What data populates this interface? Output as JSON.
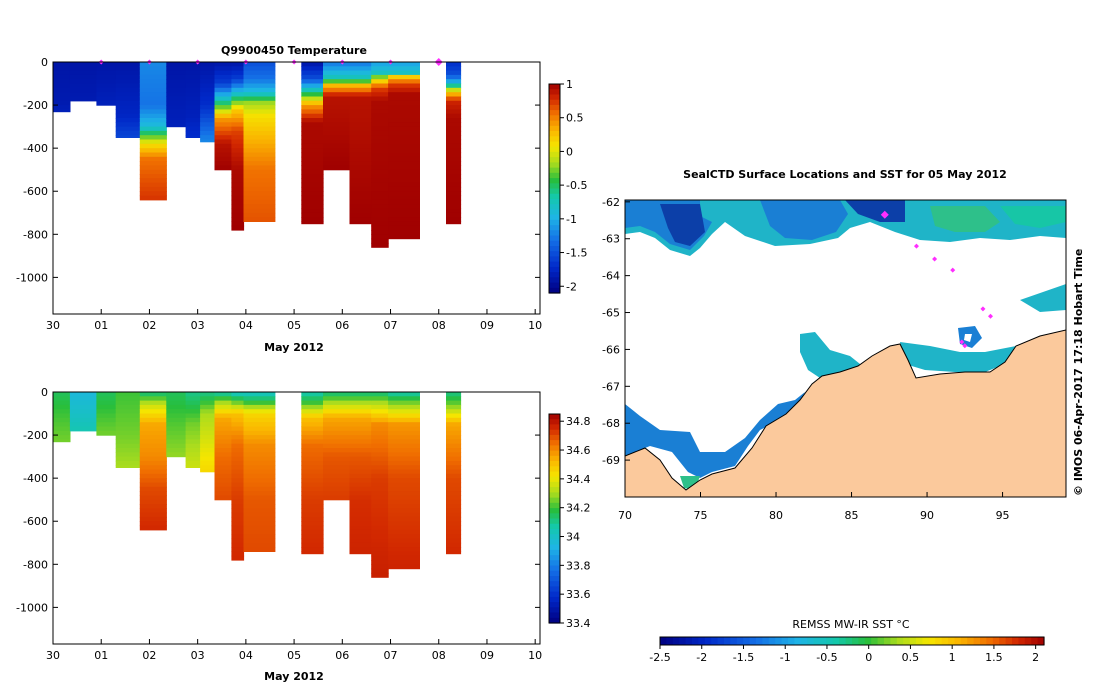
{
  "figure": {
    "top_title": "Q9900450  Temperature",
    "map_title": "SealCTD Surface Locations and SST for 05 May 2012",
    "side_caption": "© IMOS 06-Apr-2017 17:18 Hobart Time",
    "colors": {
      "land": "#fbc99c",
      "marker": "#ff2eff",
      "coast": "#000000"
    }
  },
  "chart_data": [
    {
      "id": "temperature-section",
      "type": "heatmap",
      "title": "Q9900450  Temperature",
      "xlabel": "May 2012",
      "ylabel": "",
      "x_ticks": [
        "30",
        "01",
        "02",
        "03",
        "04",
        "05",
        "06",
        "07",
        "08",
        "09",
        "10"
      ],
      "x_range": [
        0,
        10.1
      ],
      "y_ticks": [
        0,
        -200,
        -400,
        -600,
        -800,
        -1000
      ],
      "ylim": [
        -1170,
        0
      ],
      "colorbar": {
        "min": -2.1,
        "max": 1.0,
        "ticks": [
          "1",
          "0.5",
          "0",
          "-0.5",
          "-1",
          "-1.5",
          "-2"
        ]
      },
      "profiles": [
        {
          "start": 0.0,
          "end": 0.35,
          "max_depth": 230,
          "profile": [
            [
              0,
              -1.9
            ],
            [
              200,
              -1.85
            ],
            [
              230,
              -1.8
            ]
          ]
        },
        {
          "start": 0.35,
          "end": 0.9,
          "max_depth": 180,
          "profile": [
            [
              0,
              -1.9
            ],
            [
              180,
              -1.85
            ]
          ]
        },
        {
          "start": 0.9,
          "end": 1.3,
          "max_depth": 200,
          "profile": [
            [
              0,
              -1.9
            ],
            [
              200,
              -1.8
            ]
          ]
        },
        {
          "start": 1.3,
          "end": 1.8,
          "max_depth": 350,
          "profile": [
            [
              0,
              -1.9
            ],
            [
              250,
              -1.75
            ],
            [
              350,
              -1.55
            ]
          ]
        },
        {
          "start": 1.8,
          "end": 2.35,
          "max_depth": 640,
          "profile": [
            [
              0,
              -1.2
            ],
            [
              200,
              -1.3
            ],
            [
              300,
              -0.9
            ],
            [
              380,
              0.1
            ],
            [
              450,
              0.55
            ],
            [
              640,
              0.75
            ]
          ]
        },
        {
          "start": 2.35,
          "end": 2.75,
          "max_depth": 300,
          "profile": [
            [
              0,
              -1.9
            ],
            [
              300,
              -1.8
            ]
          ]
        },
        {
          "start": 2.75,
          "end": 3.05,
          "max_depth": 350,
          "profile": [
            [
              0,
              -1.9
            ],
            [
              250,
              -1.8
            ],
            [
              350,
              -1.7
            ]
          ]
        },
        {
          "start": 3.05,
          "end": 3.35,
          "max_depth": 370,
          "profile": [
            [
              0,
              -1.9
            ],
            [
              200,
              -1.7
            ],
            [
              370,
              -1.2
            ]
          ]
        },
        {
          "start": 3.35,
          "end": 3.7,
          "max_depth": 500,
          "profile": [
            [
              0,
              -1.9
            ],
            [
              100,
              -1.6
            ],
            [
              180,
              -0.7
            ],
            [
              260,
              0.4
            ],
            [
              380,
              0.9
            ],
            [
              500,
              1.0
            ]
          ]
        },
        {
          "start": 3.7,
          "end": 3.95,
          "max_depth": 780,
          "profile": [
            [
              0,
              -1.9
            ],
            [
              80,
              -1.6
            ],
            [
              150,
              -0.8
            ],
            [
              220,
              0.2
            ],
            [
              320,
              0.7
            ],
            [
              500,
              0.95
            ],
            [
              780,
              1.0
            ]
          ]
        },
        {
          "start": 3.95,
          "end": 4.6,
          "max_depth": 740,
          "profile": [
            [
              0,
              -1.5
            ],
            [
              80,
              -1.3
            ],
            [
              140,
              -0.9
            ],
            [
              190,
              -0.2
            ],
            [
              250,
              0.1
            ],
            [
              350,
              0.3
            ],
            [
              500,
              0.55
            ],
            [
              740,
              0.65
            ]
          ]
        },
        {
          "start": 5.15,
          "end": 5.6,
          "max_depth": 750,
          "profile": [
            [
              0,
              -1.9
            ],
            [
              80,
              -1.5
            ],
            [
              140,
              -0.6
            ],
            [
              200,
              0.4
            ],
            [
              280,
              0.95
            ],
            [
              750,
              1.0
            ]
          ]
        },
        {
          "start": 5.6,
          "end": 6.15,
          "max_depth": 500,
          "profile": [
            [
              0,
              -1.3
            ],
            [
              40,
              -1.0
            ],
            [
              80,
              -0.7
            ],
            [
              110,
              0.3
            ],
            [
              160,
              0.9
            ],
            [
              500,
              1.0
            ]
          ]
        },
        {
          "start": 6.15,
          "end": 6.6,
          "max_depth": 750,
          "profile": [
            [
              0,
              -1.3
            ],
            [
              40,
              -1.0
            ],
            [
              80,
              -0.7
            ],
            [
              110,
              0.3
            ],
            [
              160,
              0.9
            ],
            [
              750,
              1.0
            ]
          ]
        },
        {
          "start": 6.6,
          "end": 6.95,
          "max_depth": 860,
          "profile": [
            [
              0,
              -1.1
            ],
            [
              50,
              -0.8
            ],
            [
              80,
              0.0
            ],
            [
              120,
              0.7
            ],
            [
              180,
              0.95
            ],
            [
              860,
              1.0
            ]
          ]
        },
        {
          "start": 6.95,
          "end": 7.6,
          "max_depth": 820,
          "profile": [
            [
              0,
              -1.1
            ],
            [
              50,
              -0.8
            ],
            [
              70,
              0.2
            ],
            [
              100,
              0.7
            ],
            [
              150,
              0.95
            ],
            [
              820,
              1.0
            ]
          ]
        },
        {
          "start": 8.15,
          "end": 8.45,
          "max_depth": 750,
          "profile": [
            [
              0,
              -1.7
            ],
            [
              60,
              -1.5
            ],
            [
              100,
              -0.9
            ],
            [
              140,
              0.2
            ],
            [
              180,
              0.8
            ],
            [
              260,
              0.95
            ],
            [
              750,
              1.0
            ]
          ]
        }
      ],
      "markers": [
        1.0,
        2.0,
        3.0,
        4.0,
        5.0,
        6.0,
        7.0,
        8.0
      ]
    },
    {
      "id": "salinity-section",
      "type": "heatmap",
      "title": "",
      "xlabel": "May 2012",
      "ylabel": "",
      "x_ticks": [
        "30",
        "01",
        "02",
        "03",
        "04",
        "05",
        "06",
        "07",
        "08",
        "09",
        "10"
      ],
      "x_range": [
        0,
        10.1
      ],
      "y_ticks": [
        0,
        -200,
        -400,
        -600,
        -800,
        -1000
      ],
      "ylim": [
        -1170,
        0
      ],
      "colorbar": {
        "min": 33.4,
        "max": 34.85,
        "ticks": [
          "34.8",
          "34.6",
          "34.4",
          "34.2",
          "34",
          "33.8",
          "33.6",
          "33.4"
        ]
      },
      "profiles": [
        {
          "start": 0.0,
          "end": 0.35,
          "max_depth": 230,
          "profile": [
            [
              0,
              34.15
            ],
            [
              100,
              34.2
            ],
            [
              230,
              34.25
            ]
          ]
        },
        {
          "start": 0.35,
          "end": 0.9,
          "max_depth": 180,
          "profile": [
            [
              0,
              33.95
            ],
            [
              100,
              34.0
            ],
            [
              180,
              34.05
            ]
          ]
        },
        {
          "start": 0.9,
          "end": 1.3,
          "max_depth": 200,
          "profile": [
            [
              0,
              34.15
            ],
            [
              100,
              34.2
            ],
            [
              200,
              34.25
            ]
          ]
        },
        {
          "start": 1.3,
          "end": 1.8,
          "max_depth": 350,
          "profile": [
            [
              0,
              34.2
            ],
            [
              200,
              34.25
            ],
            [
              350,
              34.3
            ]
          ]
        },
        {
          "start": 1.8,
          "end": 2.35,
          "max_depth": 640,
          "profile": [
            [
              0,
              34.1
            ],
            [
              60,
              34.35
            ],
            [
              150,
              34.55
            ],
            [
              300,
              34.6
            ],
            [
              450,
              34.7
            ],
            [
              640,
              34.75
            ]
          ]
        },
        {
          "start": 2.35,
          "end": 2.75,
          "max_depth": 300,
          "profile": [
            [
              0,
              34.15
            ],
            [
              150,
              34.22
            ],
            [
              300,
              34.28
            ]
          ]
        },
        {
          "start": 2.75,
          "end": 3.05,
          "max_depth": 350,
          "profile": [
            [
              0,
              34.1
            ],
            [
              150,
              34.25
            ],
            [
              350,
              34.35
            ]
          ]
        },
        {
          "start": 3.05,
          "end": 3.35,
          "max_depth": 370,
          "profile": [
            [
              0,
              34.1
            ],
            [
              100,
              34.3
            ],
            [
              370,
              34.45
            ]
          ]
        },
        {
          "start": 3.35,
          "end": 3.7,
          "max_depth": 500,
          "profile": [
            [
              0,
              34.05
            ],
            [
              50,
              34.3
            ],
            [
              120,
              34.55
            ],
            [
              300,
              34.65
            ],
            [
              500,
              34.7
            ]
          ]
        },
        {
          "start": 3.7,
          "end": 3.95,
          "max_depth": 780,
          "profile": [
            [
              0,
              34.0
            ],
            [
              40,
              34.2
            ],
            [
              100,
              34.5
            ],
            [
              250,
              34.65
            ],
            [
              500,
              34.72
            ],
            [
              780,
              34.75
            ]
          ]
        },
        {
          "start": 3.95,
          "end": 4.6,
          "max_depth": 740,
          "profile": [
            [
              0,
              34.0
            ],
            [
              50,
              34.2
            ],
            [
              100,
              34.45
            ],
            [
              250,
              34.6
            ],
            [
              500,
              34.68
            ],
            [
              740,
              34.7
            ]
          ]
        },
        {
          "start": 5.15,
          "end": 5.6,
          "max_depth": 750,
          "profile": [
            [
              0,
              34.05
            ],
            [
              50,
              34.2
            ],
            [
              120,
              34.5
            ],
            [
              250,
              34.65
            ],
            [
              500,
              34.72
            ],
            [
              750,
              34.75
            ]
          ]
        },
        {
          "start": 5.6,
          "end": 6.15,
          "max_depth": 500,
          "profile": [
            [
              0,
              34.1
            ],
            [
              50,
              34.3
            ],
            [
              120,
              34.55
            ],
            [
              300,
              34.68
            ],
            [
              500,
              34.72
            ]
          ]
        },
        {
          "start": 6.15,
          "end": 6.6,
          "max_depth": 750,
          "profile": [
            [
              0,
              34.1
            ],
            [
              50,
              34.3
            ],
            [
              120,
              34.55
            ],
            [
              300,
              34.68
            ],
            [
              500,
              34.74
            ],
            [
              750,
              34.76
            ]
          ]
        },
        {
          "start": 6.6,
          "end": 6.95,
          "max_depth": 860,
          "profile": [
            [
              0,
              34.1
            ],
            [
              50,
              34.3
            ],
            [
              150,
              34.6
            ],
            [
              400,
              34.72
            ],
            [
              860,
              34.77
            ]
          ]
        },
        {
          "start": 6.95,
          "end": 7.6,
          "max_depth": 820,
          "profile": [
            [
              0,
              34.05
            ],
            [
              50,
              34.25
            ],
            [
              150,
              34.58
            ],
            [
              400,
              34.7
            ],
            [
              820,
              34.76
            ]
          ]
        },
        {
          "start": 8.15,
          "end": 8.45,
          "max_depth": 750,
          "profile": [
            [
              0,
              34.1
            ],
            [
              60,
              34.25
            ],
            [
              150,
              34.55
            ],
            [
              400,
              34.7
            ],
            [
              750,
              34.75
            ]
          ]
        }
      ]
    },
    {
      "id": "sst-map",
      "type": "heatmap",
      "title": "SealCTD Surface Locations and SST for 05 May 2012",
      "xlabel": "",
      "ylabel": "",
      "x_ticks": [
        70,
        75,
        80,
        85,
        90,
        95
      ],
      "y_ticks": [
        -62,
        -63,
        -64,
        -65,
        -66,
        -67,
        -68,
        -69
      ],
      "xlim": [
        70,
        99.2
      ],
      "ylim": [
        -70.0,
        -61.95
      ],
      "colorbar": {
        "label": "REMSS MW-IR SST °C",
        "min": -2.5,
        "max": 2.1,
        "ticks": [
          "-2.5",
          "-2",
          "-1.5",
          "-1",
          "-0.5",
          "0",
          "0.5",
          "1",
          "1.5",
          "2"
        ]
      },
      "surface_locations": [
        {
          "lon": 87.2,
          "lat": -62.35,
          "large": true
        },
        {
          "lon": 89.3,
          "lat": -63.2,
          "large": false
        },
        {
          "lon": 90.5,
          "lat": -63.55,
          "large": false
        },
        {
          "lon": 91.7,
          "lat": -63.85,
          "large": false
        },
        {
          "lon": 93.7,
          "lat": -64.9,
          "large": false
        },
        {
          "lon": 94.2,
          "lat": -65.1,
          "large": false
        },
        {
          "lon": 92.3,
          "lat": -65.8,
          "large": false
        },
        {
          "lon": 92.5,
          "lat": -65.9,
          "large": false
        }
      ]
    }
  ]
}
